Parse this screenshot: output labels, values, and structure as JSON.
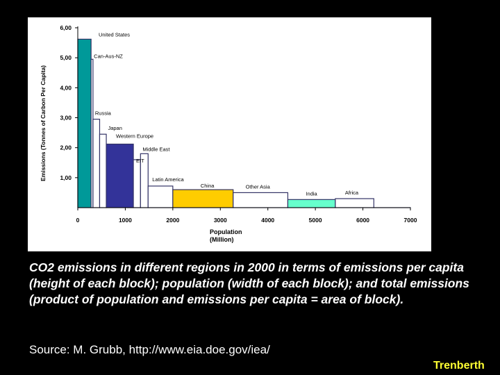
{
  "caption": "CO2 emissions in different regions in 2000 in terms of emissions per capita (height of each block); population (width of each block); and total emissions (product of population and emissions per capita = area of block).",
  "source": "Source: M. Grubb, http://www.eia.doe.gov/iea/",
  "author": "Trenberth",
  "chart_data": {
    "type": "bar",
    "title": "",
    "xlabel": [
      "Population",
      "(Million)"
    ],
    "ylabel": "Emissions (Tonnes of Carbon Per Capita)",
    "xlim": [
      0,
      7000
    ],
    "ylim": [
      0,
      6
    ],
    "x_ticks": [
      0,
      1000,
      2000,
      3000,
      4000,
      5000,
      6000,
      7000
    ],
    "y_ticks": [
      1,
      2,
      3,
      4,
      5,
      6
    ],
    "y_tick_labels": [
      "1,00",
      "2,00",
      "3,00",
      "4,00",
      "5,00",
      "6,00"
    ],
    "grid": false,
    "legend": "none",
    "blocks": [
      {
        "name": "United States",
        "x0": 0,
        "x1": 280,
        "value": 5.62,
        "color": "#009999"
      },
      {
        "name": "Can-Aus-NZ",
        "x0": 280,
        "x1": 320,
        "value": 4.95,
        "color": "#ffffff"
      },
      {
        "name": "Russia",
        "x0": 320,
        "x1": 460,
        "value": 2.95,
        "color": "#ffffff"
      },
      {
        "name": "Japan",
        "x0": 460,
        "x1": 600,
        "value": 2.45,
        "color": "#ffffff"
      },
      {
        "name": "Western Europe",
        "x0": 600,
        "x1": 1170,
        "value": 2.12,
        "color": "#333399"
      },
      {
        "name": "EIT",
        "x0": 1170,
        "x1": 1320,
        "value": 1.6,
        "color": "#ffffff"
      },
      {
        "name": "Middle East",
        "x0": 1320,
        "x1": 1480,
        "value": 1.8,
        "color": "#ffffff"
      },
      {
        "name": "Latin America",
        "x0": 1480,
        "x1": 2000,
        "value": 0.72,
        "color": "#ffffff"
      },
      {
        "name": "China",
        "x0": 2000,
        "x1": 3270,
        "value": 0.6,
        "color": "#ffcc00"
      },
      {
        "name": "Other Asia",
        "x0": 3270,
        "x1": 4420,
        "value": 0.5,
        "color": "#ffffff"
      },
      {
        "name": "India",
        "x0": 4420,
        "x1": 5420,
        "value": 0.27,
        "color": "#66ffcc"
      },
      {
        "name": "Africa",
        "x0": 5420,
        "x1": 6230,
        "value": 0.3,
        "color": "#ffffff"
      },
      {
        "name": "",
        "x0": 6230,
        "x1": 7000,
        "value": 0.0,
        "color": "#ffffff"
      }
    ]
  }
}
